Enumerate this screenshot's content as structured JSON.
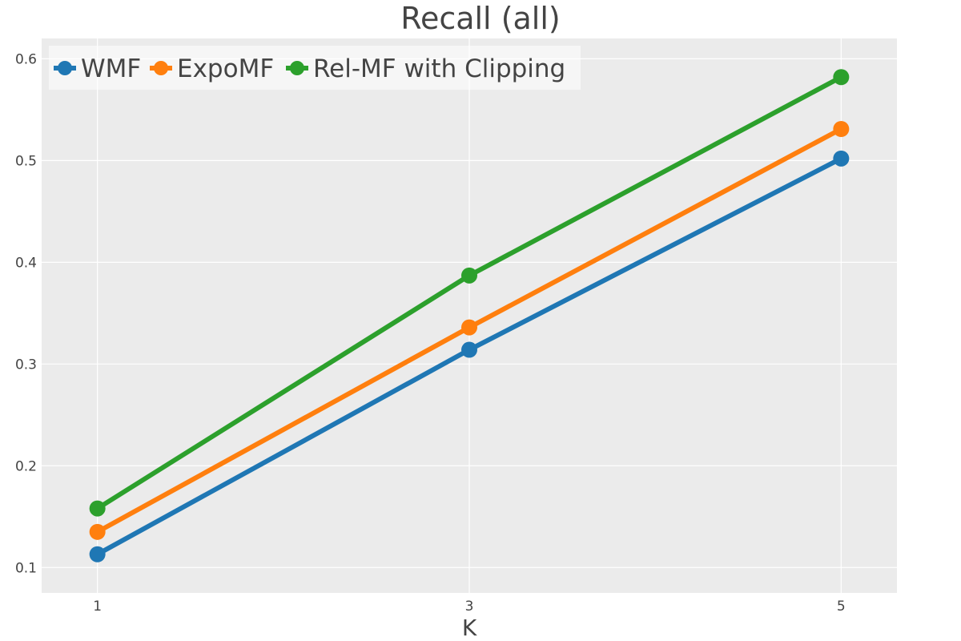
{
  "chart_data": {
    "type": "line",
    "title": "Recall (all)",
    "xlabel": "K",
    "ylabel": "",
    "x": [
      1,
      3,
      5
    ],
    "x_ticks": [
      "1",
      "3",
      "5"
    ],
    "xlim": [
      0.7,
      5.3
    ],
    "ylim": [
      0.075,
      0.62
    ],
    "y_ticks": [
      "0.1",
      "0.2",
      "0.3",
      "0.4",
      "0.5",
      "0.6"
    ],
    "y_tick_values": [
      0.1,
      0.2,
      0.3,
      0.4,
      0.5,
      0.6
    ],
    "grid": true,
    "legend_position": "top-left",
    "series": [
      {
        "name": "WMF",
        "color": "#1f77b4",
        "values": [
          0.113,
          0.314,
          0.502
        ]
      },
      {
        "name": "ExpoMF",
        "color": "#ff7f0e",
        "values": [
          0.135,
          0.336,
          0.531
        ]
      },
      {
        "name": "Rel-MF with Clipping",
        "color": "#2ca02c",
        "values": [
          0.158,
          0.387,
          0.582
        ]
      }
    ]
  }
}
